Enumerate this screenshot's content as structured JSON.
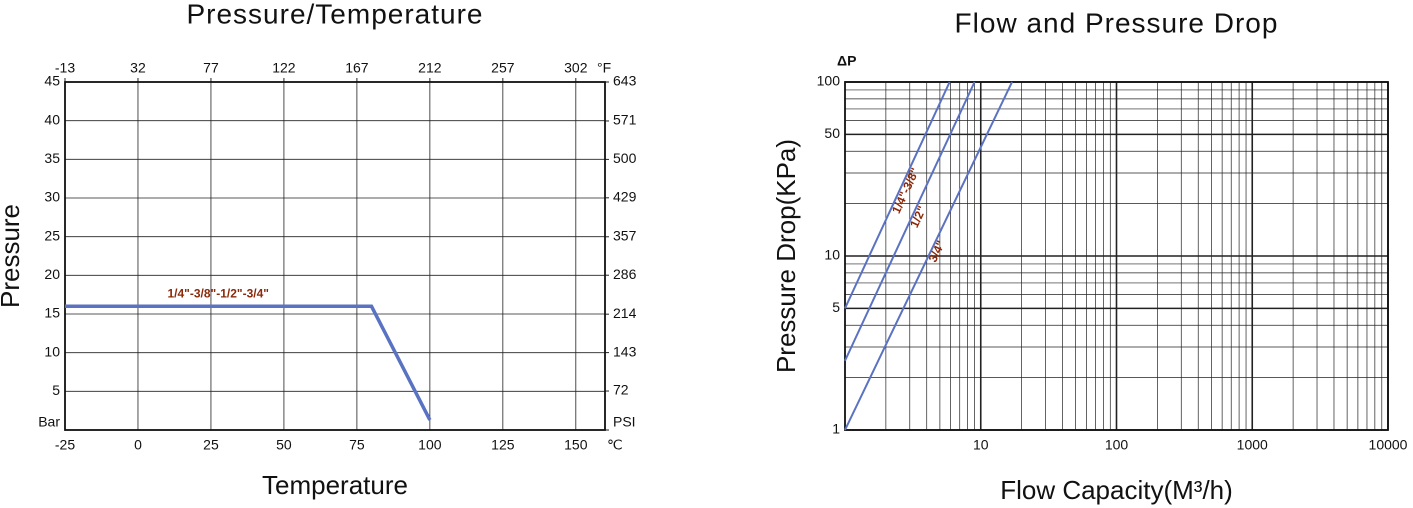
{
  "chart_data": [
    {
      "type": "line",
      "title": "Pressure/Temperature",
      "x_label": "Temperature",
      "y_label": "Pressure",
      "x_unit": "℃",
      "x2_unit": "°F",
      "xlim": [
        -25,
        160
      ],
      "xticks": [
        -25,
        0,
        25,
        50,
        75,
        100,
        125,
        150
      ],
      "x2lim": [
        -13,
        320
      ],
      "x2ticks": [
        -13,
        32,
        77,
        122,
        167,
        212,
        257,
        302
      ],
      "ylim": [
        0,
        45
      ],
      "yticks": [
        {
          "value": 0,
          "label": "Bar"
        },
        5,
        10,
        15,
        20,
        25,
        30,
        35,
        40,
        45
      ],
      "y2lim": [
        0,
        643
      ],
      "y2ticks": [
        {
          "value": 0,
          "label": "PSI"
        },
        72,
        143,
        214,
        286,
        357,
        429,
        500,
        571,
        643
      ],
      "grid": true,
      "log_x": false,
      "log_y": false,
      "series": [
        {
          "name": "1/4\"-3/8\"-1/2\"-3/4\"",
          "color": "#5a72c2",
          "label_color": "#8b2a0a",
          "x": [
            -25,
            80,
            100
          ],
          "values": [
            16,
            16,
            1.3
          ]
        }
      ]
    },
    {
      "type": "line",
      "title": "Flow and Pressure Drop",
      "x_label": "Flow Capacity(M³/h)",
      "y_label": "Pressure Drop(KPa)",
      "y_unit": "ΔP",
      "xlim": [
        1,
        10000
      ],
      "xticks": [
        10,
        100,
        1000,
        10000
      ],
      "ylim": [
        1,
        100
      ],
      "yticks": [
        1,
        5,
        10,
        50,
        100
      ],
      "grid": true,
      "log_x": true,
      "log_y": true,
      "series": [
        {
          "name": "1/4\"-3/8\"",
          "color": "#5a72c2",
          "label_color": "#8b2a0a",
          "x": [
            1,
            5.9
          ],
          "values": [
            5,
            100
          ]
        },
        {
          "name": "1/2\"",
          "color": "#5a72c2",
          "label_color": "#8b2a0a",
          "x": [
            1,
            9
          ],
          "values": [
            2.5,
            100
          ]
        },
        {
          "name": "3/4\"",
          "color": "#5a72c2",
          "label_color": "#8b2a0a",
          "x": [
            1,
            17
          ],
          "values": [
            1,
            100
          ]
        }
      ]
    }
  ]
}
